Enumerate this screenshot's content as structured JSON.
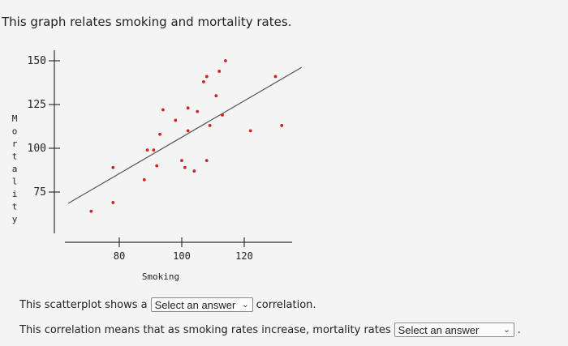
{
  "page_title": "This graph relates smoking and mortality rates.",
  "question": {
    "line1_before": "This scatterplot shows a",
    "line1_after": "correlation.",
    "line2_before": "This correlation means that as smoking rates increase, mortality rates",
    "line2_after": ".",
    "select1_value": "Select an answer",
    "select2_value": "Select an answer",
    "chevron_icon": "chevron-down-icon"
  },
  "chart_data": {
    "type": "scatter",
    "xlabel": "Smoking",
    "ylabel": "Mortality",
    "x_ticks": [
      80,
      100,
      120
    ],
    "y_ticks": [
      75,
      100,
      125,
      150
    ],
    "xlim": [
      70,
      135
    ],
    "ylim": [
      55,
      155
    ],
    "point_color": "#d42020",
    "points": [
      {
        "x": 71,
        "y": 64
      },
      {
        "x": 78,
        "y": 69
      },
      {
        "x": 78,
        "y": 89
      },
      {
        "x": 88,
        "y": 82
      },
      {
        "x": 89,
        "y": 99
      },
      {
        "x": 91,
        "y": 99
      },
      {
        "x": 92,
        "y": 90
      },
      {
        "x": 93,
        "y": 108
      },
      {
        "x": 94,
        "y": 122
      },
      {
        "x": 98,
        "y": 116
      },
      {
        "x": 100,
        "y": 93
      },
      {
        "x": 101,
        "y": 89
      },
      {
        "x": 102,
        "y": 110
      },
      {
        "x": 102,
        "y": 123
      },
      {
        "x": 104,
        "y": 87
      },
      {
        "x": 105,
        "y": 121
      },
      {
        "x": 107,
        "y": 138
      },
      {
        "x": 108,
        "y": 141
      },
      {
        "x": 108,
        "y": 93
      },
      {
        "x": 109,
        "y": 113
      },
      {
        "x": 111,
        "y": 130
      },
      {
        "x": 112,
        "y": 144
      },
      {
        "x": 113,
        "y": 119
      },
      {
        "x": 114,
        "y": 150
      },
      {
        "x": 122,
        "y": 110
      },
      {
        "x": 130,
        "y": 141
      },
      {
        "x": 132,
        "y": 113
      }
    ],
    "trend_line": {
      "x": [
        70,
        135
      ],
      "y": [
        72.9,
        143.1
      ]
    }
  }
}
